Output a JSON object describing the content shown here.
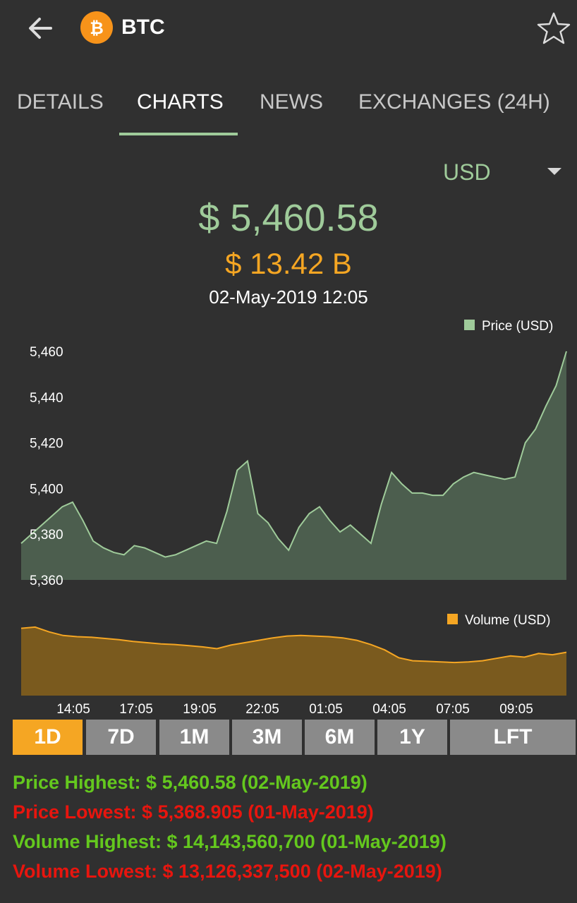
{
  "header": {
    "title": "BTC",
    "coin_icon": "bitcoin-icon",
    "back_icon": "arrow-left-icon",
    "favorite_icon": "star-outline-icon"
  },
  "tabs": [
    {
      "label": "DETAILS",
      "active": false
    },
    {
      "label": "CHARTS",
      "active": true
    },
    {
      "label": "NEWS",
      "active": false
    },
    {
      "label": "EXCHANGES (24H)",
      "active": false
    }
  ],
  "currency": {
    "selected": "USD"
  },
  "summary": {
    "price": "$ 5,460.58",
    "market_cap": "$ 13.42 B",
    "datetime": "02-May-2019 12:05"
  },
  "colors": {
    "price_green": "#9FCB9A",
    "volume_orange": "#F5A623",
    "stat_green": "#64C81E",
    "stat_red": "#E8150E"
  },
  "chart_data": [
    {
      "type": "area",
      "legend": "Price (USD)",
      "legend_position": "top-right",
      "grid": false,
      "ylim": [
        5360,
        5460
      ],
      "y_ticks": [
        "5,460",
        "5,440",
        "5,420",
        "5,400",
        "5,380",
        "5,360"
      ],
      "x_ticks": [
        "14:05",
        "17:05",
        "19:05",
        "22:05",
        "01:05",
        "04:05",
        "07:05",
        "09:05"
      ],
      "series": [
        {
          "name": "Price (USD)",
          "values": [
            5376,
            5380,
            5384,
            5388,
            5392,
            5394,
            5386,
            5377,
            5374,
            5372,
            5371,
            5375,
            5374,
            5372,
            5370,
            5371,
            5373,
            5375,
            5377,
            5376,
            5390,
            5408,
            5412,
            5389,
            5385,
            5378,
            5373,
            5383,
            5389,
            5392,
            5386,
            5381,
            5384,
            5380,
            5376,
            5393,
            5407,
            5402,
            5398,
            5398,
            5397,
            5397,
            5402,
            5405,
            5407,
            5406,
            5405,
            5404,
            5405,
            5420,
            5426,
            5436,
            5445,
            5460
          ]
        }
      ]
    },
    {
      "type": "area",
      "legend": "Volume (USD)",
      "legend_position": "top-right",
      "grid": false,
      "series": [
        {
          "name": "Volume (USD)",
          "values": [
            14.12,
            14.14,
            14.06,
            14.0,
            13.98,
            13.97,
            13.95,
            13.93,
            13.9,
            13.88,
            13.86,
            13.85,
            13.83,
            13.81,
            13.78,
            13.84,
            13.88,
            13.92,
            13.96,
            13.99,
            14.0,
            13.99,
            13.98,
            13.96,
            13.92,
            13.85,
            13.76,
            13.63,
            13.58,
            13.57,
            13.56,
            13.55,
            13.56,
            13.58,
            13.62,
            13.66,
            13.64,
            13.7,
            13.68,
            13.72
          ]
        }
      ]
    }
  ],
  "ranges": [
    {
      "label": "1D",
      "active": true
    },
    {
      "label": "7D",
      "active": false
    },
    {
      "label": "1M",
      "active": false
    },
    {
      "label": "3M",
      "active": false
    },
    {
      "label": "6M",
      "active": false
    },
    {
      "label": "1Y",
      "active": false
    },
    {
      "label": "LFT",
      "active": false
    }
  ],
  "stats": {
    "price_highest": "Price Highest: $ 5,460.58 (02-May-2019)",
    "price_lowest": "Price Lowest: $ 5,368.905 (01-May-2019)",
    "volume_highest": "Volume Highest: $ 14,143,560,700 (01-May-2019)",
    "volume_lowest": "Volume Lowest: $ 13,126,337,500 (02-May-2019)"
  }
}
